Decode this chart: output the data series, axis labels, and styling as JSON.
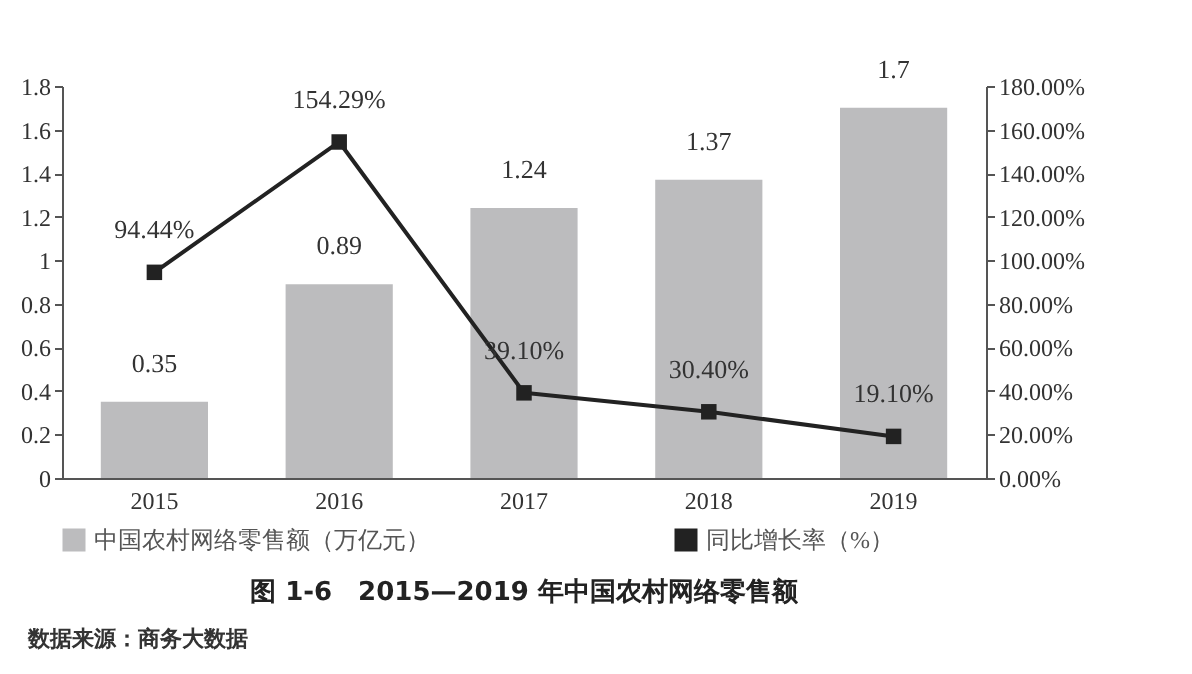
{
  "chart_data": {
    "type": "bar",
    "title": "图 1-6　2015—2019 年中国农村网络零售额",
    "categories": [
      "2015",
      "2016",
      "2017",
      "2018",
      "2019"
    ],
    "series": [
      {
        "name": "中国农村网络零售额（万亿元）",
        "color": "#bcbcbe",
        "values": [
          0.35,
          0.89,
          1.24,
          1.37,
          1.7
        ],
        "value_labels": [
          "0.35",
          "0.89",
          "1.24",
          "1.37",
          "1.7"
        ]
      },
      {
        "name": "同比增长率（%）",
        "type": "line",
        "axis": "y2",
        "color": "#222222",
        "marker": "square",
        "values": [
          94.44,
          154.29,
          39.1,
          30.4,
          19.1
        ],
        "value_labels": [
          "94.44%",
          "154.29%",
          "39.10%",
          "30.40%",
          "19.10%"
        ]
      }
    ],
    "ylim": [
      0,
      1.8
    ],
    "yticks": [
      0,
      0.2,
      0.4,
      0.6,
      0.8,
      1,
      1.2,
      1.4,
      1.6,
      1.8
    ],
    "y2lim": [
      0,
      180
    ],
    "y2ticks": [
      {
        "value": 0,
        "label": "0.00%"
      },
      {
        "value": 20,
        "label": "20.00%"
      },
      {
        "value": 40,
        "label": "40.00%"
      },
      {
        "value": 60,
        "label": "60.00%"
      },
      {
        "value": 80,
        "label": "80.00%"
      },
      {
        "value": 100,
        "label": "100.00%"
      },
      {
        "value": 120,
        "label": "120.00%"
      },
      {
        "value": 140,
        "label": "140.00%"
      },
      {
        "value": 160,
        "label": "160.00%"
      },
      {
        "value": 180,
        "label": "180.00%"
      }
    ],
    "legend": "bottom",
    "annotations": [
      "数据来源：商务大数据"
    ]
  }
}
